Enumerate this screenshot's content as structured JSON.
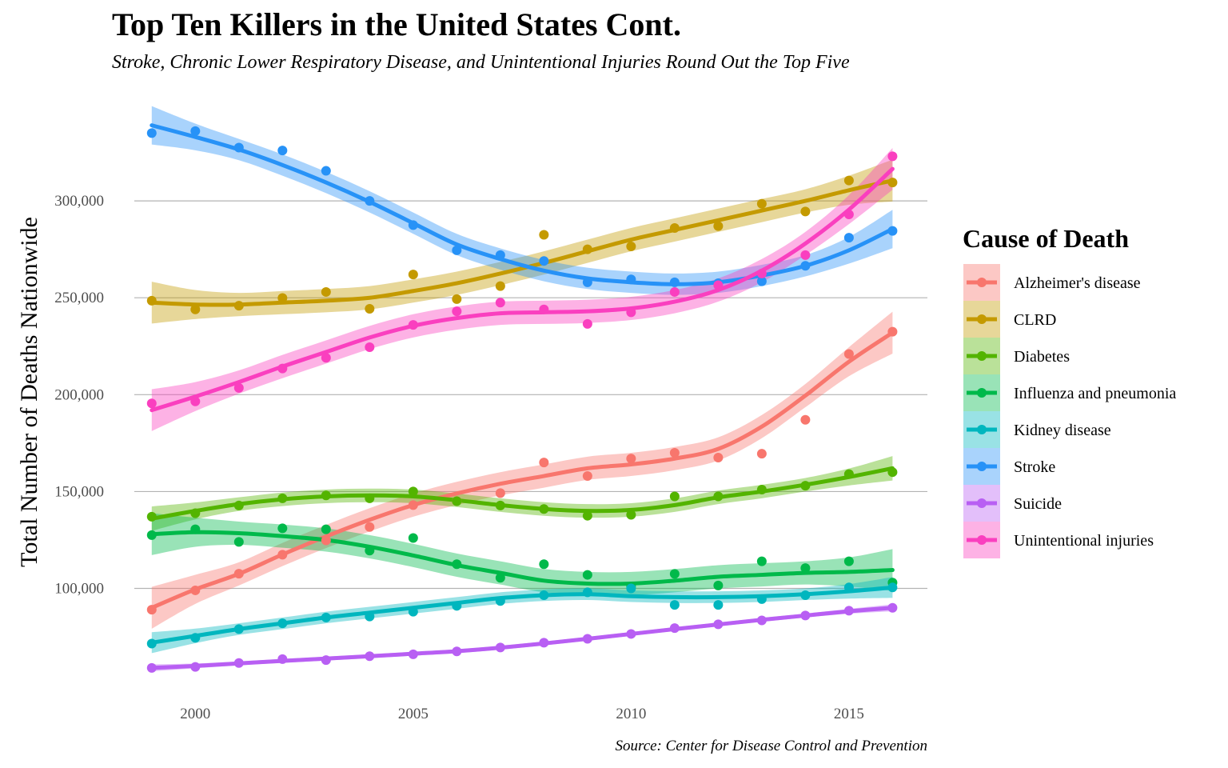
{
  "chart_data": {
    "type": "line",
    "title": "Top Ten Killers in the United States Cont.",
    "subtitle": "Stroke, Chronic Lower Respiratory Disease, and Unintentional Injuries Round Out the Top Five",
    "caption": "Source: Center for Disease Control and Prevention",
    "xlabel": "",
    "ylabel": "Total Number of Deaths Nationwide",
    "xlim": [
      1998.6,
      2016.8
    ],
    "ylim": [
      42000,
      350000
    ],
    "x_ticks": [
      2000,
      2005,
      2010,
      2015
    ],
    "x_tick_labels": [
      "2000",
      "2005",
      "2010",
      "2015"
    ],
    "y_ticks": [
      100000,
      150000,
      200000,
      250000,
      300000
    ],
    "y_tick_labels": [
      "100,000",
      "150,000",
      "200,000",
      "250,000",
      "300,000"
    ],
    "grid": "horizontal major lines",
    "legend": {
      "title": "Cause of Death",
      "position": "right"
    },
    "x": [
      1999,
      2000,
      2001,
      2002,
      2003,
      2004,
      2005,
      2006,
      2007,
      2008,
      2009,
      2010,
      2011,
      2012,
      2013,
      2014,
      2015,
      2016
    ],
    "series": [
      {
        "name": "Alzheimer's disease",
        "color": "#F8766D",
        "values": [
          89000,
          99000,
          107600,
          117400,
          124800,
          131700,
          143000,
          145100,
          149200,
          165000,
          158000,
          167000,
          170000,
          167500,
          169500,
          187000,
          221000,
          232500
        ],
        "smooth": [
          90000,
          99500,
          107500,
          117500,
          126800,
          135400,
          143000,
          149000,
          154000,
          158000,
          162000,
          164000,
          167000,
          172000,
          183500,
          199500,
          217000,
          232000
        ],
        "ribbon_halfwidth": 6000
      },
      {
        "name": "CLRD",
        "color": "#C49A00",
        "values": [
          248500,
          244000,
          245900,
          249900,
          253000,
          244300,
          262000,
          249300,
          256000,
          282500,
          275000,
          276500,
          286000,
          287000,
          298500,
          294500,
          310500,
          309500
        ],
        "smooth": [
          247500,
          246500,
          246500,
          247500,
          248500,
          250000,
          253500,
          257500,
          262500,
          268000,
          274000,
          280000,
          285000,
          290000,
          295000,
          300000,
          305500,
          310500
        ],
        "ribbon_halfwidth": 6000
      },
      {
        "name": "Diabetes",
        "color": "#53B400",
        "values": [
          137000,
          138800,
          142800,
          146500,
          148000,
          146500,
          150000,
          145000,
          142800,
          141000,
          137500,
          138000,
          147500,
          147500,
          151000,
          153000,
          159000,
          160000
        ],
        "smooth": [
          136000,
          140000,
          143500,
          146000,
          147500,
          148000,
          147500,
          145500,
          143000,
          141000,
          140000,
          140500,
          143000,
          147000,
          150000,
          153500,
          157500,
          162000
        ],
        "ribbon_halfwidth": 3500
      },
      {
        "name": "Influenza and pneumonia",
        "color": "#00B94A",
        "values": [
          127500,
          130500,
          124000,
          131000,
          130500,
          119500,
          126000,
          112500,
          105500,
          112500,
          107000,
          101000,
          107500,
          101500,
          114000,
          110500,
          114000,
          103000
        ],
        "smooth": [
          128000,
          129000,
          128500,
          127000,
          125000,
          121500,
          117000,
          112000,
          108000,
          104000,
          102500,
          102500,
          104000,
          106000,
          107000,
          108000,
          108500,
          109500
        ],
        "ribbon_halfwidth": 6000
      },
      {
        "name": "Kidney disease",
        "color": "#00B6BE",
        "values": [
          71500,
          74500,
          79000,
          82000,
          85000,
          85500,
          88000,
          91000,
          93500,
          96500,
          98000,
          100000,
          91500,
          91500,
          94500,
          96500,
          100500,
          100500
        ],
        "smooth": [
          72000,
          75500,
          79000,
          82000,
          85000,
          87500,
          90000,
          92500,
          95000,
          96500,
          97000,
          96000,
          95500,
          95500,
          96000,
          97000,
          98500,
          100500
        ],
        "ribbon_halfwidth": 3000
      },
      {
        "name": "Stroke",
        "color": "#2792F7",
        "values": [
          335000,
          336000,
          327500,
          326000,
          315500,
          300000,
          287500,
          274500,
          272000,
          269000,
          258000,
          259500,
          258000,
          257500,
          258500,
          266500,
          281000,
          284500
        ],
        "smooth": [
          339000,
          333000,
          326500,
          318500,
          309500,
          299500,
          288500,
          277500,
          270000,
          264000,
          260000,
          258000,
          257000,
          258000,
          261500,
          266500,
          274500,
          285500
        ],
        "ribbon_halfwidth": 5500
      },
      {
        "name": "Suicide",
        "color": "#B85FF3",
        "values": [
          59000,
          59500,
          61500,
          63500,
          63000,
          65000,
          66000,
          67500,
          69500,
          72000,
          74000,
          76500,
          79500,
          81500,
          83500,
          86000,
          88500,
          90000
        ],
        "smooth": [
          59000,
          60000,
          61300,
          62600,
          63800,
          65000,
          66300,
          67600,
          69400,
          71600,
          74000,
          76500,
          79000,
          81400,
          83800,
          86000,
          88200,
          90000
        ],
        "ribbon_halfwidth": 1000
      },
      {
        "name": "Unintentional injuries",
        "color": "#FA3FBF",
        "values": [
          195500,
          196500,
          203500,
          213500,
          219000,
          224500,
          236000,
          243000,
          247500,
          244000,
          236500,
          242500,
          253000,
          256500,
          262500,
          272000,
          293000,
          323000
        ],
        "smooth": [
          192000,
          199000,
          206500,
          214500,
          222000,
          229500,
          235500,
          239500,
          242000,
          242500,
          243000,
          244500,
          248000,
          254000,
          264000,
          278000,
          295500,
          316500
        ],
        "ribbon_halfwidth": 6000
      }
    ]
  }
}
